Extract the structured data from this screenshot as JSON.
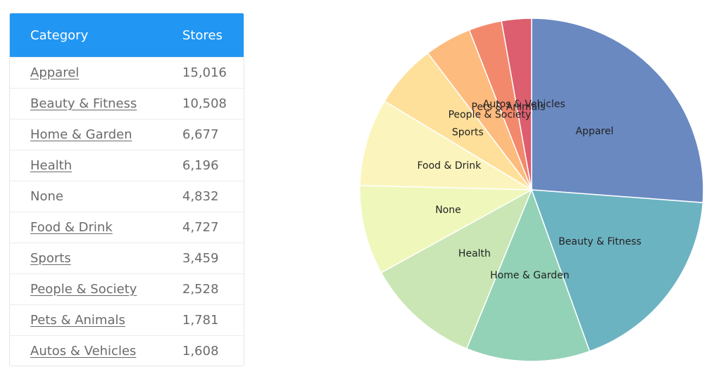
{
  "table": {
    "headers": {
      "category": "Category",
      "stores": "Stores"
    },
    "rows": [
      {
        "category": "Apparel",
        "stores": "15,016",
        "link": true
      },
      {
        "category": "Beauty & Fitness",
        "stores": "10,508",
        "link": true
      },
      {
        "category": "Home & Garden",
        "stores": "6,677",
        "link": true
      },
      {
        "category": "Health",
        "stores": "6,196",
        "link": true
      },
      {
        "category": "None",
        "stores": "4,832",
        "link": false
      },
      {
        "category": "Food & Drink",
        "stores": "4,727",
        "link": true
      },
      {
        "category": "Sports",
        "stores": "3,459",
        "link": true
      },
      {
        "category": "People & Society",
        "stores": "2,528",
        "link": true
      },
      {
        "category": "Pets & Animals",
        "stores": "1,781",
        "link": true
      },
      {
        "category": "Autos & Vehicles",
        "stores": "1,608",
        "link": true
      }
    ],
    "header_color": "#2196f3"
  },
  "chart_data": {
    "type": "pie",
    "categories": [
      "Apparel",
      "Beauty & Fitness",
      "Home & Garden",
      "Health",
      "None",
      "Food & Drink",
      "Sports",
      "People & Society",
      "Pets & Animals",
      "Autos & Vehicles"
    ],
    "values": [
      15016,
      10508,
      6677,
      6196,
      4832,
      4727,
      3459,
      2528,
      1781,
      1608
    ],
    "colors": [
      "#6a89c1",
      "#6cb3c2",
      "#93d2b6",
      "#c9e6b4",
      "#eff7bb",
      "#fbf5bd",
      "#fee09a",
      "#fdbb7e",
      "#f3896c",
      "#dc5e6f"
    ],
    "title": "",
    "start": "top, clockwise"
  }
}
